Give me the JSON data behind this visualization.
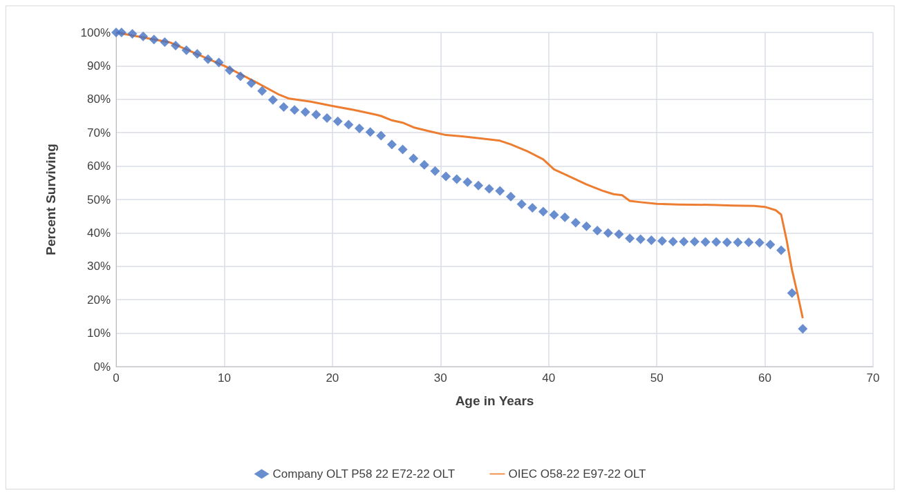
{
  "chart_data": {
    "type": "line",
    "xlabel": "Age in Years",
    "ylabel": "Percent Surviving",
    "xlim": [
      0,
      70
    ],
    "xticks": [
      0,
      10,
      20,
      30,
      40,
      50,
      60,
      70
    ],
    "ylim": [
      0,
      100
    ],
    "yticks": [
      {
        "value": 0,
        "label": "0%"
      },
      {
        "value": 10,
        "label": "10%"
      },
      {
        "value": 20,
        "label": "20%"
      },
      {
        "value": 30,
        "label": "30%"
      },
      {
        "value": 40,
        "label": "40%"
      },
      {
        "value": 50,
        "label": "50%"
      },
      {
        "value": 60,
        "label": "60%"
      },
      {
        "value": 70,
        "label": "70%"
      },
      {
        "value": 80,
        "label": "80%"
      },
      {
        "value": 90,
        "label": "90%"
      },
      {
        "value": 100,
        "label": "100%"
      }
    ],
    "grid": true,
    "legend": "bottom",
    "series": [
      {
        "name": "Company OLT P58 22 E72-22 OLT",
        "type": "scatter",
        "marker": "diamond",
        "color": "#4472c4",
        "x": [
          0,
          0.5,
          1.5,
          2.5,
          3.5,
          4.5,
          5.5,
          6.5,
          7.5,
          8.5,
          9.5,
          10.5,
          11.5,
          12.5,
          13.5,
          14.5,
          15.5,
          16.5,
          17.5,
          18.5,
          19.5,
          20.5,
          21.5,
          22.5,
          23.5,
          24.5,
          25.5,
          26.5,
          27.5,
          28.5,
          29.5,
          30.5,
          31.5,
          32.5,
          33.5,
          34.5,
          35.5,
          36.5,
          37.5,
          38.5,
          39.5,
          40.5,
          41.5,
          42.5,
          43.5,
          44.5,
          45.5,
          46.5,
          47.5,
          48.5,
          49.5,
          50.5,
          51.5,
          52.5,
          53.5,
          54.5,
          55.5,
          56.5,
          57.5,
          58.5,
          59.5,
          60.5,
          61.5,
          62.5,
          63.5
        ],
        "values": [
          100,
          100,
          99.6,
          98.8,
          97.9,
          97.1,
          96.1,
          94.7,
          93.6,
          92.0,
          91.0,
          88.7,
          86.9,
          84.8,
          82.5,
          79.8,
          77.7,
          76.8,
          76.2,
          75.4,
          74.4,
          73.4,
          72.4,
          71.3,
          70.2,
          69.1,
          66.5,
          65.0,
          62.3,
          60.4,
          58.5,
          56.9,
          56.1,
          55.2,
          54.2,
          53.2,
          52.6,
          50.9,
          48.6,
          47.5,
          46.4,
          45.4,
          44.7,
          43.1,
          42.0,
          40.7,
          40.0,
          39.6,
          38.4,
          38.1,
          37.8,
          37.6,
          37.4,
          37.4,
          37.4,
          37.3,
          37.3,
          37.2,
          37.2,
          37.2,
          37.1,
          36.5,
          34.8,
          22.0,
          11.3
        ]
      },
      {
        "name": "OIEC O58-22 E97-22 OLT",
        "marker": "none",
        "color": "#ed7d31",
        "x": [
          0,
          5,
          10,
          13,
          15,
          16,
          18,
          20,
          22,
          24,
          24.5,
          25.5,
          26.5,
          27.5,
          29,
          30.5,
          32,
          34,
          35.5,
          36.5,
          38,
          39.5,
          40.5,
          42,
          43.5,
          45,
          46,
          46.8,
          47.5,
          48.5,
          50,
          52,
          55,
          57,
          59,
          60,
          61,
          61.5,
          62,
          62.5,
          63,
          63.5
        ],
        "values": [
          100,
          97,
          90,
          85,
          81.5,
          80.2,
          79.3,
          78,
          76.8,
          75.4,
          75,
          73.7,
          73,
          71.6,
          70.4,
          69.3,
          68.9,
          68.2,
          67.6,
          66.5,
          64.5,
          62,
          59,
          56.8,
          54.5,
          52.6,
          51.6,
          51.3,
          49.6,
          49.2,
          48.7,
          48.5,
          48.4,
          48.2,
          48.1,
          47.8,
          46.8,
          45.5,
          38,
          29,
          22,
          14.5
        ]
      }
    ]
  }
}
